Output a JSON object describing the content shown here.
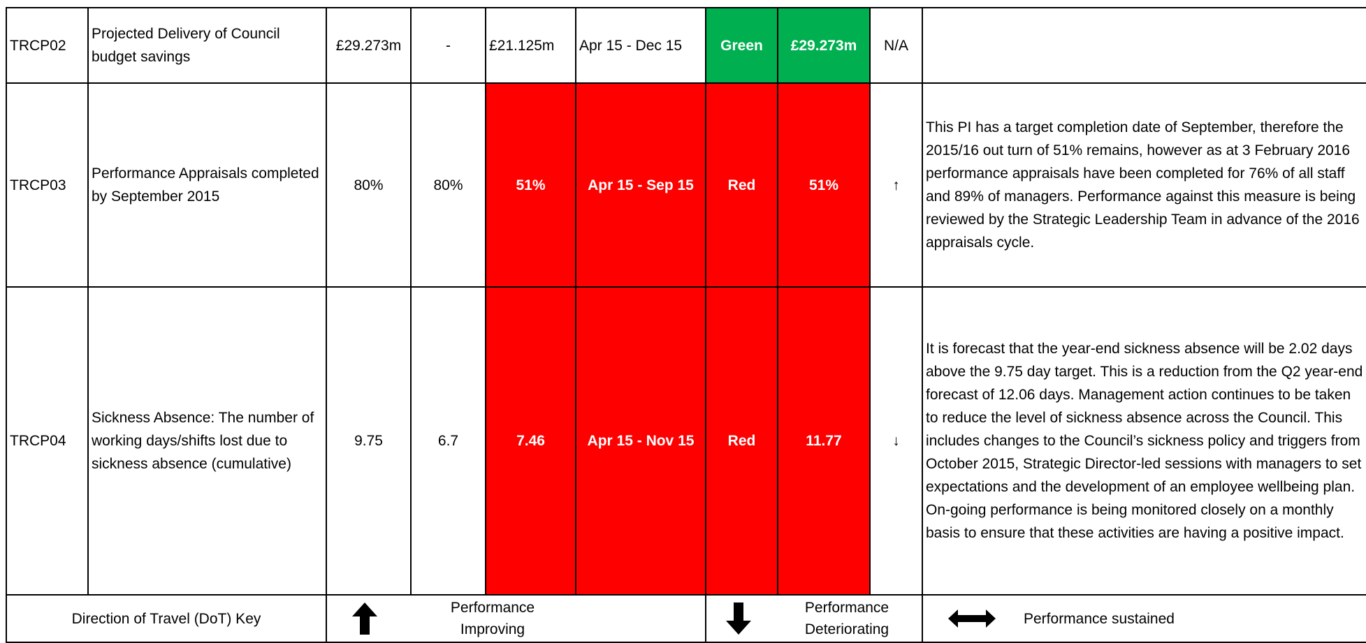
{
  "rows": [
    {
      "ref": "TRCP02",
      "measure": "Projected Delivery of Council budget savings",
      "target": "£29.273m",
      "prev": "-",
      "current": "£21.125m",
      "period": "Apr 15 - Dec 15",
      "rag": "Green",
      "forecast": "£29.273m",
      "dot": "N/A",
      "comment": ""
    },
    {
      "ref": "TRCP03",
      "measure": "Performance Appraisals completed by September 2015",
      "target": "80%",
      "prev": "80%",
      "current": "51%",
      "period": "Apr 15 - Sep 15",
      "rag": "Red",
      "forecast": "51%",
      "dot": "↑",
      "comment": "This PI has a target completion date of September, therefore the 2015/16 out turn of 51% remains, however as at 3 February 2016 performance appraisals have been completed for 76% of all staff and 89% of managers. Performance against this measure is being reviewed by the Strategic Leadership Team in advance of the 2016 appraisals cycle."
    },
    {
      "ref": "TRCP04",
      "measure": "Sickness Absence: The number of working days/shifts lost due to sickness absence (cumulative)",
      "target": "9.75",
      "prev": "6.7",
      "current": "7.46",
      "period": "Apr 15 - Nov 15",
      "rag": "Red",
      "forecast": "11.77",
      "dot": "↓",
      "comment": "It is forecast that the year-end sickness absence will be 2.02 days above the 9.75 day target. This is a reduction from the Q2 year-end forecast of 12.06 days.  Management action continues to be taken to reduce the level of sickness absence across the Council.  This includes changes to the Council’s sickness policy and triggers from October 2015, Strategic Director-led sessions with managers to set expectations and the development of an employee wellbeing plan.  On-going performance is being monitored closely on a monthly basis to ensure that these activities are having a positive impact."
    }
  ],
  "key": {
    "title": "Direction of Travel (DoT) Key",
    "improving": "Performance Improving",
    "deteriorating": "Performance Deteriorating",
    "sustained": "Performance sustained",
    "icons": [
      "arrow-up-icon",
      "arrow-down-icon",
      "arrow-left-right-icon"
    ]
  },
  "colors": {
    "red": "#ff0000",
    "green": "#00b050"
  }
}
